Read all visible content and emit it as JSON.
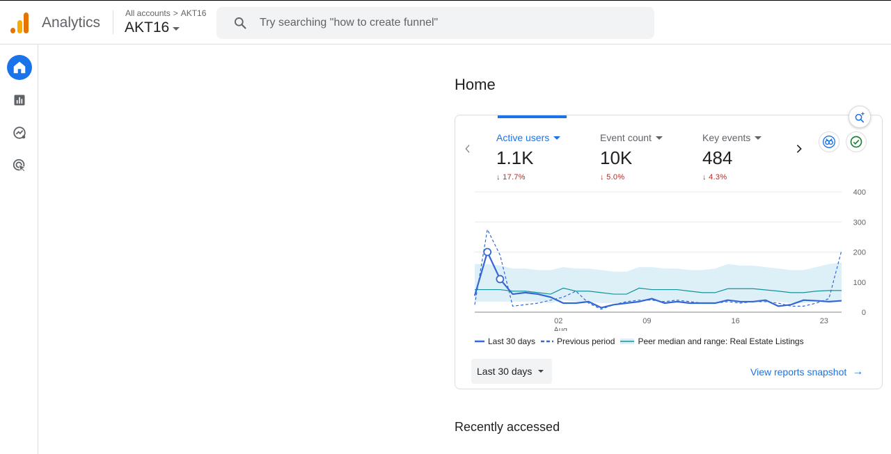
{
  "header": {
    "app_name": "Analytics",
    "breadcrumb": {
      "root": "All accounts",
      "separator": ">",
      "account": "AKT16"
    },
    "property": "AKT16",
    "search_placeholder": "Try searching \"how to create funnel\""
  },
  "sidebar": {
    "items": [
      {
        "name": "home",
        "icon": "home-icon",
        "active": true
      },
      {
        "name": "reports",
        "icon": "bar-chart-icon",
        "active": false
      },
      {
        "name": "explore",
        "icon": "explore-icon",
        "active": false
      },
      {
        "name": "advertising",
        "icon": "advertising-cursor-icon",
        "active": false
      }
    ]
  },
  "main": {
    "page_title": "Home",
    "card": {
      "metrics": [
        {
          "label": "Active users",
          "value": "1.1K",
          "delta": "17.7%",
          "direction": "down",
          "active": true
        },
        {
          "label": "Event count",
          "value": "10K",
          "delta": "5.0%",
          "direction": "down",
          "active": false
        },
        {
          "label": "Key events",
          "value": "484",
          "delta": "4.3%",
          "direction": "down",
          "active": false
        }
      ],
      "legend": {
        "current": "Last 30 days",
        "previous": "Previous period",
        "peer": "Peer median and range: Real Estate Listings"
      },
      "date_range": "Last 30 days",
      "view_link": "View reports snapshot"
    },
    "recently_accessed_title": "Recently accessed"
  },
  "chart_data": {
    "type": "line",
    "x_tick_labels": [
      "02",
      "09",
      "16",
      "23"
    ],
    "x_tick_sublabels": [
      "Aug",
      "",
      "",
      ""
    ],
    "x_tick_index": [
      7,
      14,
      21,
      28
    ],
    "y_ticks": [
      0,
      100,
      200,
      300,
      400
    ],
    "ylim": [
      0,
      400
    ],
    "grid": true,
    "series": [
      {
        "name": "Last 30 days",
        "style": "solid",
        "color": "#3367d6",
        "values": [
          55,
          200,
          110,
          60,
          65,
          60,
          50,
          30,
          30,
          35,
          15,
          25,
          30,
          35,
          45,
          30,
          35,
          30,
          30,
          30,
          40,
          35,
          35,
          40,
          20,
          25,
          40,
          38,
          35,
          38
        ]
      },
      {
        "name": "Previous period",
        "style": "dashed",
        "color": "#3367d6",
        "values": [
          25,
          275,
          190,
          20,
          25,
          30,
          40,
          50,
          70,
          30,
          10,
          25,
          35,
          40,
          40,
          35,
          40,
          35,
          30,
          30,
          35,
          30,
          35,
          35,
          30,
          20,
          20,
          30,
          45,
          205
        ]
      },
      {
        "name": "Peer median and range: Real Estate Listings",
        "style": "band",
        "color": "#12939a",
        "median": [
          75,
          75,
          75,
          70,
          70,
          65,
          60,
          80,
          70,
          70,
          65,
          60,
          60,
          80,
          75,
          75,
          75,
          70,
          65,
          65,
          78,
          78,
          78,
          74,
          70,
          65,
          65,
          70,
          72,
          72
        ],
        "upper": [
          160,
          160,
          155,
          145,
          145,
          140,
          140,
          150,
          145,
          145,
          140,
          135,
          135,
          150,
          150,
          145,
          145,
          140,
          140,
          145,
          160,
          155,
          155,
          150,
          145,
          140,
          140,
          150,
          160,
          165
        ],
        "lower": [
          35,
          35,
          35,
          35,
          35,
          35,
          30,
          40,
          35,
          35,
          30,
          30,
          30,
          40,
          40,
          35,
          35,
          35,
          30,
          30,
          40,
          40,
          40,
          35,
          35,
          30,
          30,
          35,
          35,
          35
        ]
      }
    ],
    "highlighted_points": [
      {
        "index": 1,
        "value": 200
      },
      {
        "index": 2,
        "value": 110
      }
    ]
  },
  "colors": {
    "accent": "#1a73e8",
    "negative": "#c5221f",
    "peer_band": "#d9eef6",
    "peer_line": "#12939a",
    "logo_dark": "#e37400",
    "logo_light": "#f9ab00"
  }
}
